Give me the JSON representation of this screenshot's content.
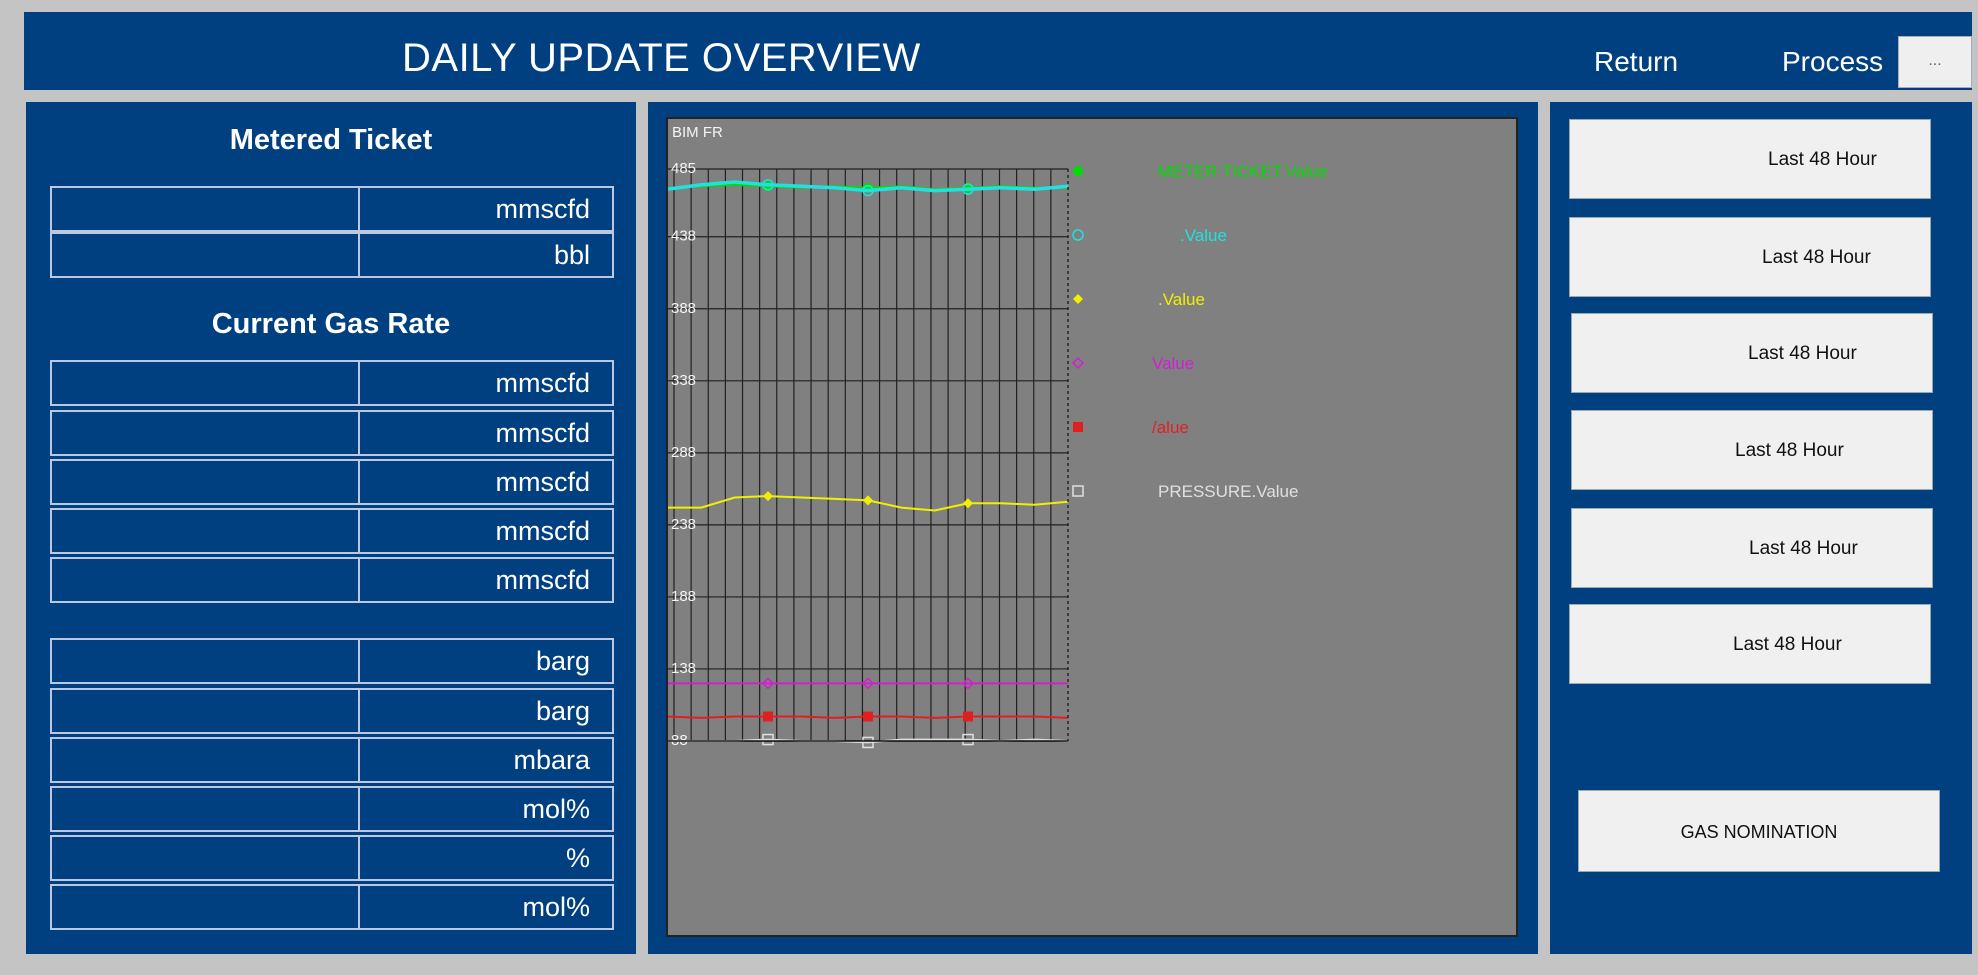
{
  "header": {
    "title": "DAILY UPDATE OVERVIEW",
    "return_label": "Return",
    "process_label": "Process",
    "process_button_label": "..."
  },
  "metered_ticket": {
    "title": "Metered Ticket",
    "rows": [
      {
        "unit": "mmscfd"
      },
      {
        "unit": "bbl"
      }
    ]
  },
  "current_gas_rate": {
    "title": "Current Gas Rate",
    "rows": [
      {
        "unit": "mmscfd"
      },
      {
        "unit": "mmscfd"
      },
      {
        "unit": "mmscfd"
      },
      {
        "unit": "mmscfd"
      },
      {
        "unit": "mmscfd"
      }
    ]
  },
  "process_values": {
    "rows": [
      {
        "unit": "barg"
      },
      {
        "unit": "barg"
      },
      {
        "unit": "mbara"
      },
      {
        "unit": "mol%"
      },
      {
        "unit": "%"
      },
      {
        "unit": "mol%"
      }
    ]
  },
  "right_panel": {
    "buttons": [
      "Last 48 Hour",
      "Last 48 Hour",
      "Last 48 Hour",
      "Last 48 Hour",
      "Last 48 Hour",
      "Last 48 Hour"
    ],
    "gas_nomination_label": "GAS NOMINATION"
  },
  "chart_data": {
    "type": "line",
    "title": "BIM FR",
    "y_ticks": [
      485,
      438,
      388,
      338,
      288,
      238,
      188,
      138,
      88
    ],
    "ylim": [
      88,
      485
    ],
    "background": "#808080",
    "legend_position": "right",
    "x": [
      0,
      4,
      8,
      12,
      16,
      20,
      24,
      28,
      32,
      36,
      40,
      44,
      48
    ],
    "series": [
      {
        "name": "METER TICKET.Value",
        "color": "#00dd00",
        "marker": "filled-circle",
        "values": [
          472,
          473,
          474,
          473,
          472,
          473,
          472,
          473,
          471,
          472,
          473,
          472,
          472
        ]
      },
      {
        "name": ".Value",
        "color": "#20e0e0",
        "marker": "open-circle",
        "values": [
          471,
          474,
          476,
          474,
          473,
          472,
          470,
          472,
          470,
          471,
          472,
          471,
          473
        ]
      },
      {
        "name": ".Value",
        "color": "#f0f000",
        "marker": "filled-diamond",
        "values": [
          250,
          250,
          257,
          258,
          257,
          256,
          255,
          250,
          248,
          253,
          253,
          252,
          254
        ]
      },
      {
        "name": "Value",
        "color": "#d020d0",
        "marker": "open-diamond",
        "values": [
          128,
          128,
          128,
          128,
          128,
          128,
          128,
          128,
          128,
          128,
          128,
          128,
          128
        ]
      },
      {
        "name": "/alue",
        "color": "#e02020",
        "marker": "filled-square",
        "values": [
          105,
          104,
          105,
          105,
          105,
          104,
          105,
          105,
          104,
          105,
          105,
          105,
          104
        ]
      },
      {
        "name": "PRESSURE.Value",
        "color": "#e0e0e0",
        "marker": "open-square",
        "values": [
          88,
          88,
          88,
          89,
          88,
          88,
          87,
          89,
          89,
          89,
          88,
          89,
          88
        ]
      }
    ]
  },
  "colors": {
    "panel": "#003f80",
    "background": "#c4c4c4",
    "button": "#f0f0f0"
  }
}
